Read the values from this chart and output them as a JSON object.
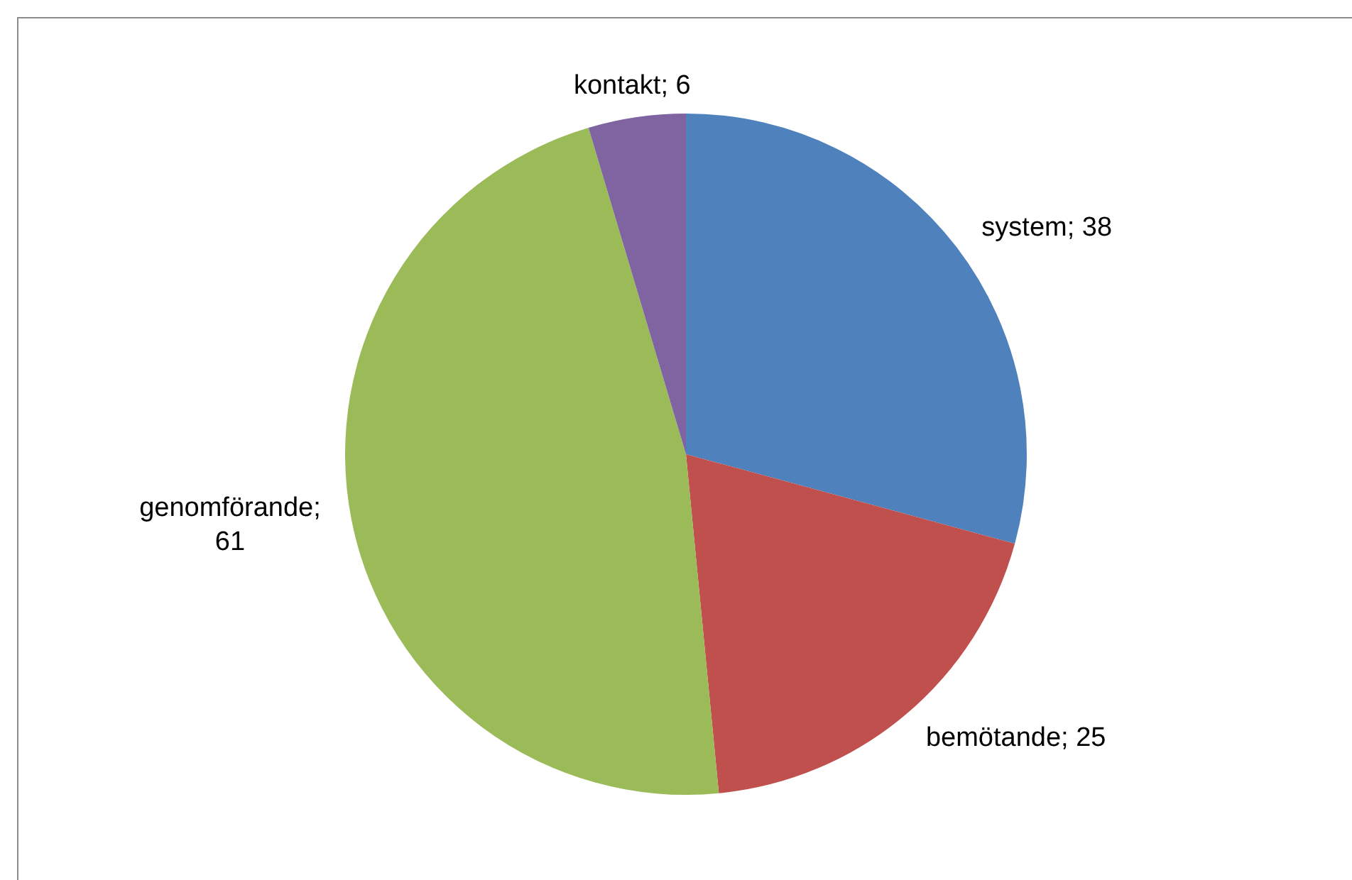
{
  "chart_data": {
    "type": "pie",
    "categories": [
      "system",
      "bemötande",
      "genomförande",
      "kontakt"
    ],
    "values": [
      38,
      25,
      61,
      6
    ],
    "colors": [
      "#4f81bd",
      "#c0504d",
      "#9bbb59",
      "#8064a2"
    ],
    "value_labels": [
      "; 38",
      "; 25",
      "; 61",
      "; 6"
    ],
    "legend": false
  }
}
